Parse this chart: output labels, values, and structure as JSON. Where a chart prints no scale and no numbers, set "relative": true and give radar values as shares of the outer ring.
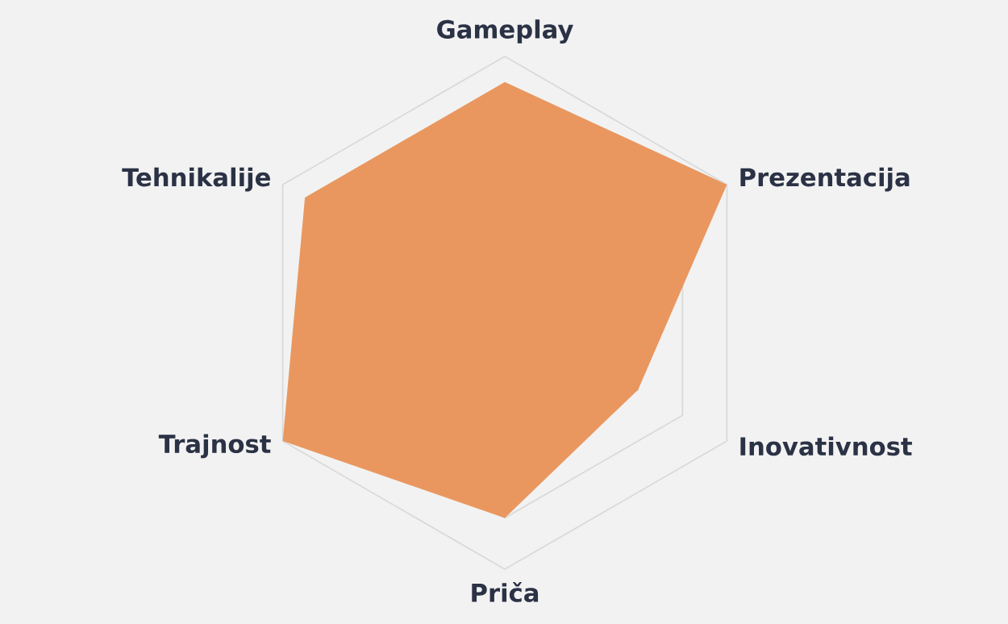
{
  "chart_data": {
    "type": "radar",
    "relative": true,
    "grid": true,
    "categories": [
      "Gameplay",
      "Prezentacija",
      "Inovativnost",
      "Priča",
      "Trajnost",
      "Tehnikalije"
    ],
    "series": [
      {
        "color": "#e9975f",
        "values": [
          0.9,
          1.0,
          0.6,
          0.8,
          1.0,
          0.9
        ]
      }
    ]
  }
}
